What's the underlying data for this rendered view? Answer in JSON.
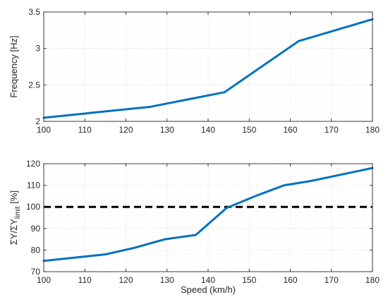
{
  "colors": {
    "series": "#0072BD",
    "reference": "#000000",
    "axis": "#262626"
  },
  "chart_data": [
    {
      "type": "line",
      "title": "",
      "xlabel": "",
      "ylabel": "Frequency [Hz]",
      "xlim": [
        100,
        180
      ],
      "ylim": [
        2,
        3.5
      ],
      "xticks": [
        "100",
        "110",
        "120",
        "130",
        "140",
        "150",
        "160",
        "170",
        "180"
      ],
      "yticks": [
        "2",
        "2.5",
        "3",
        "3.5"
      ],
      "grid": true,
      "series": [
        {
          "x": [
            100,
            126,
            144,
            162,
            180
          ],
          "y": [
            2.05,
            2.2,
            2.4,
            3.1,
            3.4
          ]
        }
      ]
    },
    {
      "type": "line",
      "title": "",
      "xlabel": "Speed (km/h)",
      "ylabel_main": "ΣY/ΣY",
      "ylabel_sub": "limit",
      "ylabel_unit": " [%]",
      "xlim": [
        100,
        180
      ],
      "ylim": [
        70,
        120
      ],
      "xticks": [
        "100",
        "110",
        "120",
        "130",
        "140",
        "150",
        "160",
        "170",
        "180"
      ],
      "yticks": [
        "70",
        "80",
        "90",
        "100",
        "110",
        "120"
      ],
      "grid": true,
      "series": [
        {
          "x": [
            100,
            115,
            122,
            129.5,
            137,
            144.5,
            151.5,
            158.5,
            165,
            180
          ],
          "y": [
            75,
            78,
            81,
            85,
            87,
            99.5,
            105,
            110,
            112,
            118
          ]
        }
      ],
      "reference_line": {
        "y": 100,
        "style": "dashed"
      }
    }
  ]
}
